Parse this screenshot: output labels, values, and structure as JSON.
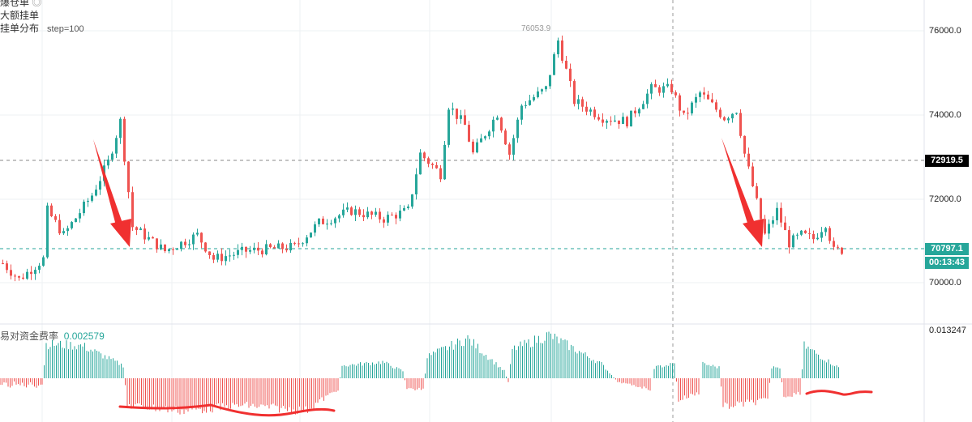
{
  "legend": {
    "line1": "爆仓单",
    "line2": "大额挂单",
    "line3": "挂单分布",
    "line3_param": "step=100",
    "eye_icon": "eye-icon"
  },
  "price_axis": {
    "ticks": [
      "76000.0",
      "74000.0",
      "72000.0",
      "70000.0"
    ],
    "high_marker": "76053.9"
  },
  "tags": {
    "reference_price": "72919.5",
    "last_price": "70797.1",
    "countdown": "00:13:43"
  },
  "funding": {
    "label": "易对资金费率",
    "value": "0.002579",
    "axis_max": "0.013247"
  },
  "colors": {
    "up": "#26a69a",
    "down": "#ef5350",
    "annotation": "#f03030",
    "tag_dark": "#000000",
    "tag_green": "#26a69a"
  },
  "chart_data": {
    "type": "candlestick",
    "ylim": [
      69600,
      76500
    ],
    "price_path": [
      [
        0,
        70480
      ],
      [
        4,
        70100
      ],
      [
        10,
        70580
      ],
      [
        11,
        71730
      ],
      [
        15,
        71150
      ],
      [
        22,
        72100
      ],
      [
        26,
        72880
      ],
      [
        29,
        73850
      ],
      [
        32,
        71350
      ],
      [
        40,
        70770
      ],
      [
        48,
        71150
      ],
      [
        52,
        70580
      ],
      [
        60,
        70770
      ],
      [
        72,
        70870
      ],
      [
        78,
        71440
      ],
      [
        86,
        71730
      ],
      [
        94,
        71540
      ],
      [
        100,
        71730
      ],
      [
        103,
        73080
      ],
      [
        108,
        72600
      ],
      [
        110,
        74230
      ],
      [
        114,
        73750
      ],
      [
        116,
        73080
      ],
      [
        122,
        74040
      ],
      [
        125,
        73080
      ],
      [
        128,
        74230
      ],
      [
        134,
        74620
      ],
      [
        137,
        75770
      ],
      [
        141,
        74330
      ],
      [
        148,
        73940
      ],
      [
        154,
        73850
      ],
      [
        160,
        74620
      ],
      [
        165,
        74620
      ],
      [
        168,
        73940
      ],
      [
        172,
        74520
      ],
      [
        178,
        73940
      ],
      [
        181,
        74130
      ],
      [
        183,
        73080
      ],
      [
        188,
        71150
      ],
      [
        191,
        71730
      ],
      [
        194,
        70960
      ],
      [
        197,
        71150
      ],
      [
        200,
        71060
      ],
      [
        203,
        71440
      ],
      [
        205,
        70770
      ],
      [
        207,
        70797
      ]
    ],
    "funding_path": [
      [
        0,
        -0.0018
      ],
      [
        10,
        -0.0018
      ],
      [
        11,
        0.0095
      ],
      [
        20,
        0.009
      ],
      [
        30,
        0.0035
      ],
      [
        31,
        -0.0075
      ],
      [
        45,
        -0.009
      ],
      [
        60,
        -0.0075
      ],
      [
        75,
        -0.009
      ],
      [
        83,
        -0.003
      ],
      [
        84,
        0.0035
      ],
      [
        94,
        0.0045
      ],
      [
        99,
        0.002
      ],
      [
        100,
        -0.003
      ],
      [
        104,
        -0.003
      ],
      [
        105,
        0.006
      ],
      [
        115,
        0.011
      ],
      [
        124,
        0.002
      ],
      [
        125,
        -0.001
      ],
      [
        126,
        0.008
      ],
      [
        135,
        0.012
      ],
      [
        148,
        0.004
      ],
      [
        152,
        -0.001
      ],
      [
        160,
        -0.003
      ],
      [
        161,
        0.003
      ],
      [
        166,
        0.004
      ],
      [
        167,
        -0.006
      ],
      [
        172,
        -0.004
      ],
      [
        173,
        0.004
      ],
      [
        177,
        0.003
      ],
      [
        178,
        -0.008
      ],
      [
        189,
        -0.006
      ],
      [
        190,
        0.003
      ],
      [
        192,
        0.003
      ],
      [
        193,
        -0.005
      ],
      [
        197,
        -0.004
      ],
      [
        198,
        0.009
      ],
      [
        207,
        0.002579
      ]
    ]
  }
}
